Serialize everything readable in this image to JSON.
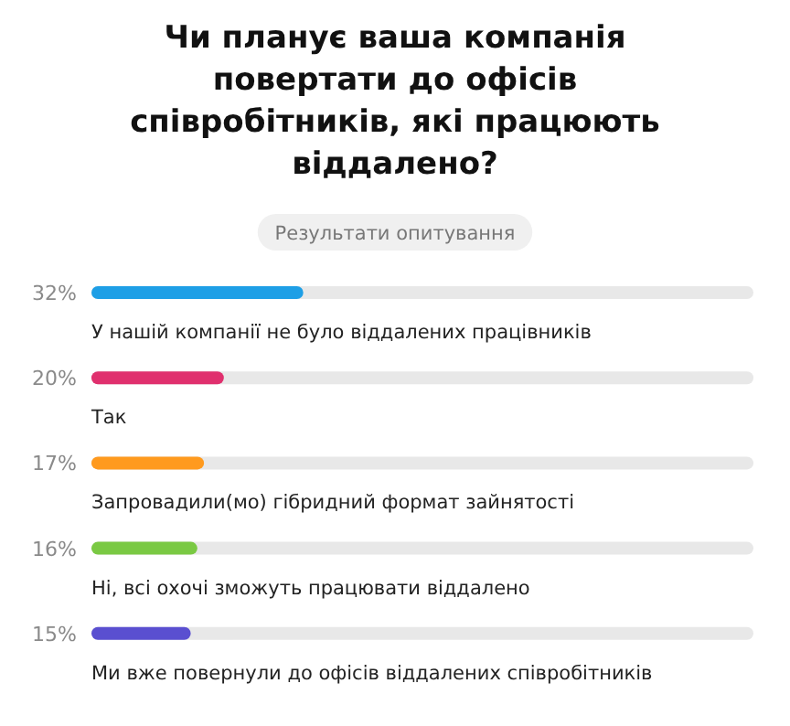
{
  "chart_data": {
    "type": "bar",
    "orientation": "horizontal",
    "title": "Чи планує ваша компанія повертати до офісів співробітників, які працюють віддалено?",
    "subtitle": "Результати опитування",
    "categories": [
      "У нашій компанії не було віддалених працівників",
      "Так",
      "Запровадили(мо) гібридний формат зайнятості",
      "Ні, всі охочі зможуть працювати віддалено",
      "Ми вже повернули до офісів віддалених співробітників"
    ],
    "values": [
      32,
      20,
      17,
      16,
      15
    ],
    "value_labels": [
      "32%",
      "20%",
      "17%",
      "16%",
      "15%"
    ],
    "colors": [
      "#1e9fe6",
      "#e0306e",
      "#ff9a1e",
      "#7ac943",
      "#5a4fd0"
    ],
    "xlim": [
      0,
      100
    ]
  }
}
